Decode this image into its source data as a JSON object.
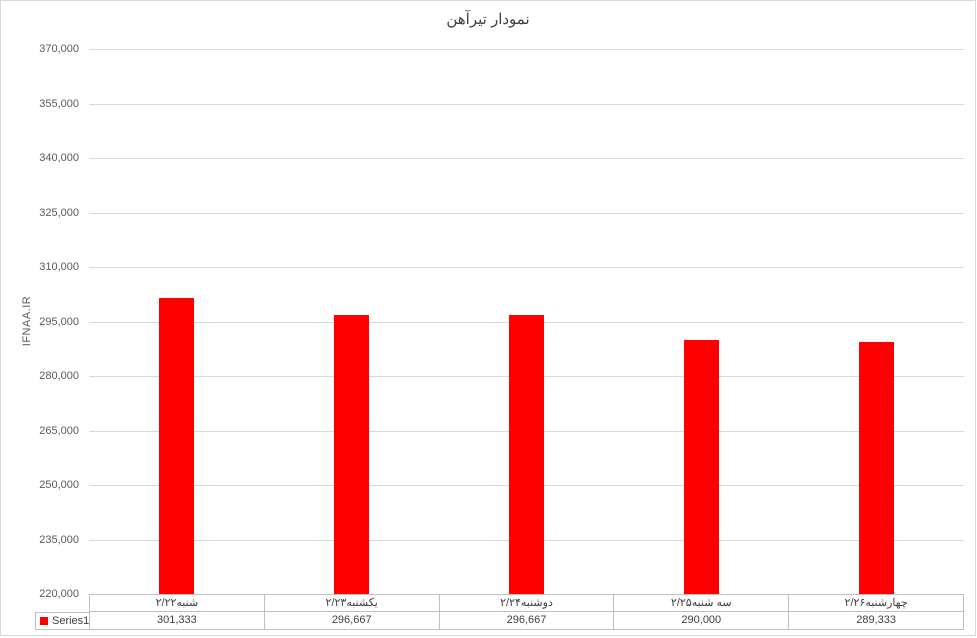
{
  "title": "نمودار تیرآهن",
  "y_axis_title": "IFNAA.IR",
  "legend": {
    "series_label": "Series1",
    "marker_color": "#ff0000"
  },
  "colors": {
    "bar": "#ff0000",
    "grid_line": "#d9d9d9",
    "table_border": "#bfbfbf",
    "text": "#404040",
    "axis_text": "#595959",
    "frame_border": "#d9d9d9"
  },
  "chart_data": {
    "type": "bar",
    "title": "نمودار تیرآهن",
    "ylabel": "IFNAA.IR",
    "xlabel": "",
    "categories": [
      "شنبه۲/۲۲",
      "یکشنبه۲/۲۳",
      "دوشنبه۲/۲۴",
      "سه شنبه۲/۲۵",
      "چهارشنبه۲/۲۶"
    ],
    "series": [
      {
        "name": "Series1",
        "color": "#ff0000",
        "values": [
          301333,
          296667,
          296667,
          290000,
          289333
        ]
      }
    ],
    "value_labels": [
      "301,333",
      "296,667",
      "296,667",
      "290,000",
      "289,333"
    ],
    "ylim": [
      220000,
      370000
    ],
    "ytick_step": 15000,
    "ytick_labels": [
      "220,000",
      "235,000",
      "250,000",
      "265,000",
      "280,000",
      "295,000",
      "310,000",
      "325,000",
      "340,000",
      "355,000",
      "370,000"
    ],
    "grid": true,
    "legend_position": "data-table-left",
    "data_table_shown": true
  }
}
